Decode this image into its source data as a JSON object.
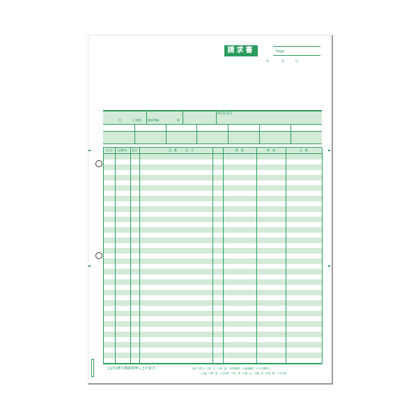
{
  "form": {
    "title": "請求書",
    "page_label": "Page.",
    "date_labels": [
      "年",
      "月",
      "日"
    ],
    "info": {
      "cutoff_month": "月",
      "cutoff_day": "日 締切",
      "detail_label": "請求明細",
      "sheets_unit": "枚",
      "client_label": "取引先 記号"
    },
    "table_headers": [
      "月 日",
      "伝票No.",
      "区分",
      "品　番　・　品　名",
      "数　量",
      "単　価",
      "金　額"
    ],
    "footer_note": "上記の通り御請求申し上げます。",
    "category_sales": "区分（売上）1:売　上　2:返　品　3:商品値引　4:返品値引　5:その他売上",
    "category_payment": "（入金）1:現　金　2:小切手　3:手　形　4:振　込　5:値　引　6:相　殺　7:その他",
    "colors": {
      "accent": "#2a9d5c",
      "stripe": "#d3ead8"
    }
  }
}
